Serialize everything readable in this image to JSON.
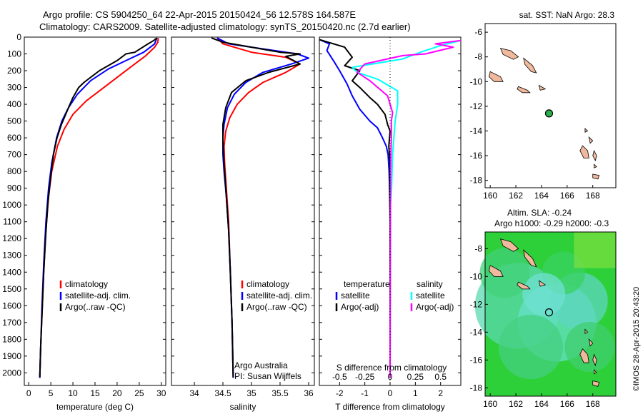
{
  "header": {
    "line1": "Argo profile: CS 5904250_64 22-Apr-2015 20150424_56 12.578S 164.587E",
    "line2": "Climatology: CARS2009. Satellite-adjusted climatology: synTS_20150420.nc (2.7d earlier)"
  },
  "side_label": "©IMOS 28-Apr-2015 20:43:20",
  "colors": {
    "climatology": "#ff0000",
    "satellite": "#0000ff",
    "argo": "#000000",
    "sal_satellite": "#00ffff",
    "sal_argo": "#ff00ff",
    "land": "#f0b89c"
  },
  "legend_main": {
    "climatology": "climatology",
    "satellite": "satellite-adj. clim.",
    "argo": "Argo(..raw -QC)"
  },
  "legend_diff": {
    "col1_title": "temperature",
    "col2_title": "salinity",
    "satellite": "satellite",
    "argo": "Argo(-adj)"
  },
  "annotation": {
    "line1": "Argo Australia",
    "line2": "PI: Susan Wijffels"
  },
  "chart_data": [
    {
      "type": "line",
      "name": "temperature",
      "xlabel": "temperature (deg C)",
      "ylim": [
        0,
        2075
      ],
      "xlim": [
        -1,
        31
      ],
      "xticks": [
        "0",
        "5",
        "10",
        "15",
        "20",
        "25",
        "30"
      ],
      "yticks": [
        "0",
        "100",
        "200",
        "300",
        "400",
        "500",
        "600",
        "700",
        "800",
        "900",
        "1000",
        "1100",
        "1200",
        "1300",
        "1400",
        "1500",
        "1600",
        "1700",
        "1800",
        "1900",
        "2000"
      ],
      "series": [
        {
          "key": "climatology",
          "values": [
            [
              29.3,
              5
            ],
            [
              29.2,
              30
            ],
            [
              28.5,
              60
            ],
            [
              26.5,
              110
            ],
            [
              24,
              160
            ],
            [
              21,
              220
            ],
            [
              17,
              300
            ],
            [
              13,
              380
            ],
            [
              10,
              460
            ],
            [
              8,
              550
            ],
            [
              6.5,
              650
            ],
            [
              5.2,
              800
            ],
            [
              4.5,
              950
            ],
            [
              3.9,
              1150
            ],
            [
              3.4,
              1400
            ],
            [
              3,
              1650
            ],
            [
              2.7,
              1850
            ],
            [
              2.5,
              2030
            ]
          ]
        },
        {
          "key": "satellite",
          "values": [
            [
              29.0,
              5
            ],
            [
              28.5,
              40
            ],
            [
              26,
              90
            ],
            [
              22,
              140
            ],
            [
              18,
              190
            ],
            [
              14,
              260
            ],
            [
              11,
              340
            ],
            [
              9,
              420
            ],
            [
              7.5,
              500
            ],
            [
              6.3,
              600
            ],
            [
              5.2,
              750
            ],
            [
              4.5,
              900
            ],
            [
              3.9,
              1100
            ],
            [
              3.4,
              1350
            ],
            [
              3,
              1600
            ],
            [
              2.7,
              1850
            ],
            [
              2.5,
              2030
            ]
          ]
        },
        {
          "key": "argo",
          "values": [
            [
              29.0,
              5
            ],
            [
              28.3,
              20
            ],
            [
              27,
              40
            ],
            [
              24,
              90
            ],
            [
              22,
              100
            ],
            [
              20,
              140
            ],
            [
              16,
              200
            ],
            [
              12.5,
              270
            ],
            [
              11.3,
              300
            ],
            [
              10,
              360
            ],
            [
              9,
              420
            ],
            [
              7.4,
              520
            ],
            [
              6.4,
              600
            ],
            [
              5.6,
              700
            ],
            [
              4.9,
              850
            ],
            [
              4.3,
              1000
            ],
            [
              3.8,
              1200
            ],
            [
              3.4,
              1400
            ],
            [
              3.0,
              1650
            ],
            [
              2.7,
              1850
            ],
            [
              2.5,
              2025
            ]
          ]
        }
      ]
    },
    {
      "type": "line",
      "name": "salinity",
      "xlabel": "salinity",
      "ylim": [
        0,
        2075
      ],
      "xlim": [
        33.6,
        36.1
      ],
      "xticks": [
        "34",
        "34.5",
        "35",
        "35.5",
        "36"
      ],
      "series": [
        {
          "key": "climatology",
          "values": [
            [
              34.4,
              5
            ],
            [
              34.5,
              40
            ],
            [
              35.0,
              90
            ],
            [
              35.6,
              120
            ],
            [
              35.85,
              160
            ],
            [
              35.6,
              210
            ],
            [
              35.2,
              270
            ],
            [
              34.95,
              330
            ],
            [
              34.75,
              400
            ],
            [
              34.62,
              480
            ],
            [
              34.55,
              560
            ],
            [
              34.52,
              650
            ],
            [
              34.53,
              750
            ],
            [
              34.56,
              900
            ],
            [
              34.6,
              1100
            ],
            [
              34.63,
              1400
            ],
            [
              34.66,
              1700
            ],
            [
              34.68,
              2030
            ]
          ]
        },
        {
          "key": "satellite",
          "values": [
            [
              34.4,
              5
            ],
            [
              34.6,
              40
            ],
            [
              35.2,
              70
            ],
            [
              35.8,
              100
            ],
            [
              36.0,
              125
            ],
            [
              35.7,
              160
            ],
            [
              35.2,
              210
            ],
            [
              34.9,
              270
            ],
            [
              34.7,
              340
            ],
            [
              34.58,
              420
            ],
            [
              34.52,
              520
            ],
            [
              34.5,
              600
            ],
            [
              34.5,
              700
            ],
            [
              34.52,
              800
            ],
            [
              34.56,
              950
            ],
            [
              34.6,
              1150
            ],
            [
              34.63,
              1400
            ],
            [
              34.66,
              1700
            ],
            [
              34.68,
              2030
            ]
          ]
        },
        {
          "key": "argo",
          "values": [
            [
              34.3,
              5
            ],
            [
              34.5,
              30
            ],
            [
              35.0,
              60
            ],
            [
              35.5,
              90
            ],
            [
              35.85,
              100
            ],
            [
              35.6,
              115
            ],
            [
              35.85,
              160
            ],
            [
              35.3,
              210
            ],
            [
              34.9,
              260
            ],
            [
              34.65,
              330
            ],
            [
              34.55,
              420
            ],
            [
              34.5,
              520
            ],
            [
              34.5,
              620
            ],
            [
              34.51,
              700
            ],
            [
              34.53,
              800
            ],
            [
              34.56,
              950
            ],
            [
              34.6,
              1150
            ],
            [
              34.63,
              1400
            ],
            [
              34.66,
              1700
            ],
            [
              34.68,
              2025
            ]
          ]
        }
      ]
    },
    {
      "type": "line",
      "name": "differences",
      "xlabel": "T difference from climatology",
      "xlabel_top": "S difference from climatology",
      "ylim": [
        0,
        2075
      ],
      "xlim": [
        -2.8,
        2.8
      ],
      "xticks": [
        "-2",
        "-1",
        "0",
        "1",
        "2"
      ],
      "xticks_top": [
        "-0.5",
        "-0.25",
        "0",
        "0.25",
        "0.5"
      ],
      "series": [
        {
          "key": "satellite",
          "values": [
            [
              -2.8,
              15
            ],
            [
              -2.4,
              40
            ],
            [
              -2.5,
              80
            ],
            [
              -2.2,
              150
            ],
            [
              -2.0,
              200
            ],
            [
              -1.7,
              280
            ],
            [
              -1.5,
              350
            ],
            [
              -1.2,
              430
            ],
            [
              -0.8,
              500
            ],
            [
              -0.5,
              540
            ],
            [
              -0.3,
              600
            ],
            [
              -0.15,
              650
            ],
            [
              -0.08,
              700
            ],
            [
              -0.04,
              800
            ],
            [
              0,
              1000
            ],
            [
              0,
              2030
            ]
          ]
        },
        {
          "key": "argo",
          "values": [
            [
              -2.8,
              15
            ],
            [
              -1.8,
              60
            ],
            [
              -1.5,
              120
            ],
            [
              -1.8,
              170
            ],
            [
              -1.2,
              200
            ],
            [
              -1.5,
              260
            ],
            [
              -1.2,
              300
            ],
            [
              -0.8,
              360
            ],
            [
              -0.5,
              400
            ],
            [
              -0.2,
              460
            ],
            [
              -0.1,
              520
            ],
            [
              0,
              560
            ],
            [
              -0.05,
              650
            ],
            [
              0,
              750
            ],
            [
              -0.02,
              900
            ],
            [
              0,
              1100
            ],
            [
              0,
              2030
            ]
          ]
        },
        {
          "key": "sal_satellite",
          "values": [
            [
              2.8,
              20
            ],
            [
              2.0,
              50
            ],
            [
              1.2,
              90
            ],
            [
              0.5,
              130
            ],
            [
              -1.5,
              180
            ],
            [
              -1.3,
              210
            ],
            [
              -0.5,
              250
            ],
            [
              0.3,
              320
            ],
            [
              0.3,
              400
            ],
            [
              0.2,
              500
            ],
            [
              0.15,
              600
            ],
            [
              0.1,
              700
            ],
            [
              0.08,
              800
            ],
            [
              0.06,
              900
            ],
            [
              0.02,
              1000
            ],
            [
              0,
              2030
            ]
          ]
        },
        {
          "key": "sal_argo",
          "values": [
            [
              2.8,
              20
            ],
            [
              1.8,
              40
            ],
            [
              2.5,
              60
            ],
            [
              1.4,
              100
            ],
            [
              0.5,
              110
            ],
            [
              -1.0,
              160
            ],
            [
              -1.3,
              210
            ],
            [
              -0.8,
              260
            ],
            [
              -0.1,
              350
            ],
            [
              0.1,
              450
            ],
            [
              0.05,
              500
            ],
            [
              0.05,
              600
            ],
            [
              0.03,
              700
            ],
            [
              0.02,
              800
            ],
            [
              0.01,
              1000
            ],
            [
              0,
              2030
            ]
          ]
        }
      ]
    },
    {
      "type": "scatter",
      "name": "sst_map",
      "title": "sat. SST: NaN Argo: 28.3",
      "xlim": [
        159.6,
        169.8
      ],
      "ylim": [
        -18.6,
        -5.3
      ],
      "xticks": [
        "160",
        "162",
        "164",
        "166",
        "168"
      ],
      "yticks": [
        "-6",
        "-8",
        "-10",
        "-12",
        "-14",
        "-16",
        "-18"
      ],
      "point": [
        164.587,
        -12.578
      ]
    },
    {
      "type": "heatmap",
      "name": "sla_map",
      "title1": "Altim. SLA: -0.24",
      "title2": "Argo h1000: -0.29 h2000: -0.3",
      "xlim": [
        159.6,
        169.8
      ],
      "ylim": [
        -18.6,
        -6.8
      ],
      "xticks": [
        "160",
        "162",
        "164",
        "166",
        "168"
      ],
      "yticks": [
        "-8",
        "-10",
        "-12",
        "-14",
        "-16",
        "-18"
      ],
      "point": [
        164.587,
        -12.578
      ]
    }
  ]
}
